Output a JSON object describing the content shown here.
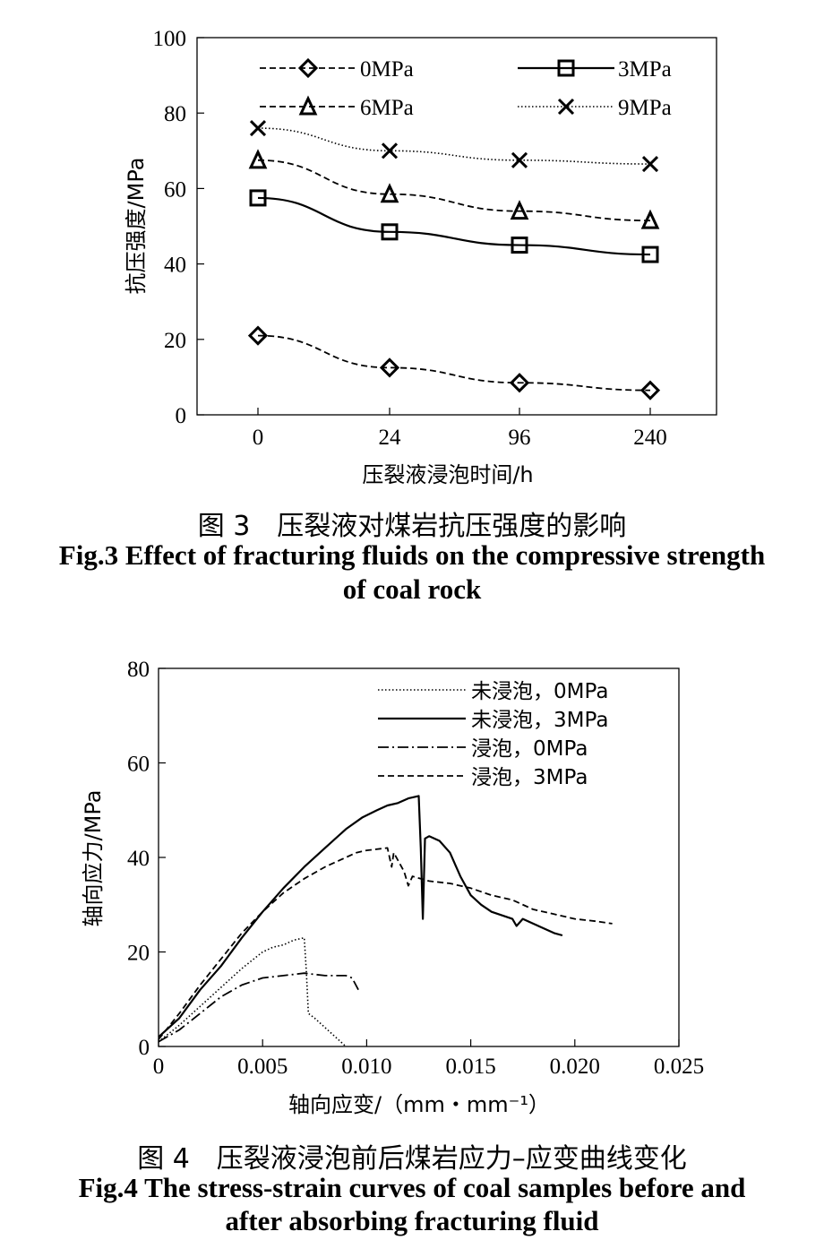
{
  "chart_data": [
    {
      "type": "line",
      "caption_cn": "图 3　压裂液对煤岩抗压强度的影响",
      "caption_en_line1": "Fig.3 Effect of fracturing fluids on the compressive strength",
      "caption_en_line2": "of coal rock",
      "xlabel": "压裂液浸泡时间/h",
      "ylabel": "抗压强度/MPa",
      "categories": [
        "0",
        "24",
        "96",
        "240"
      ],
      "ylim": [
        0,
        100
      ],
      "yticks": [
        "0",
        "20",
        "40",
        "60",
        "80",
        "100"
      ],
      "grid": false,
      "legend_position": "top",
      "series": [
        {
          "name": "0MPa",
          "marker": "diamond",
          "style": "dashed",
          "values": [
            21,
            12.5,
            8.5,
            6.5
          ]
        },
        {
          "name": "3MPa",
          "marker": "square",
          "style": "solid",
          "values": [
            57.5,
            48.5,
            45,
            42.5
          ]
        },
        {
          "name": "6MPa",
          "marker": "triangle",
          "style": "dashed",
          "values": [
            67.5,
            58.5,
            54,
            51.5
          ]
        },
        {
          "name": "9MPa",
          "marker": "x",
          "style": "dotted",
          "values": [
            76,
            70,
            67.5,
            66.5
          ]
        }
      ]
    },
    {
      "type": "line",
      "caption_cn": "图 4　压裂液浸泡前后煤岩应力–应变曲线变化",
      "caption_en_line1": "Fig.4 The stress-strain curves of coal samples before and",
      "caption_en_line2": "after absorbing fracturing fluid",
      "xlabel": "轴向应变/（mm・mm⁻¹）",
      "ylabel": "轴向应力/MPa",
      "xlim": [
        0,
        0.025
      ],
      "ylim": [
        0,
        80
      ],
      "xticks": [
        "0",
        "0.005",
        "0.010",
        "0.015",
        "0.020",
        "0.025"
      ],
      "yticks": [
        "0",
        "20",
        "40",
        "60",
        "80"
      ],
      "grid": false,
      "legend_position": "top-right",
      "series": [
        {
          "name": "未浸泡，0MPa",
          "style": "dotted",
          "x": [
            0,
            0.001,
            0.002,
            0.003,
            0.004,
            0.005,
            0.0055,
            0.006,
            0.0065,
            0.007,
            0.0071,
            0.0072,
            0.0075,
            0.008,
            0.0085,
            0.009
          ],
          "y": [
            1,
            4.5,
            8.5,
            12.5,
            16.5,
            20,
            21,
            21.5,
            22.5,
            23,
            16,
            7,
            6,
            4,
            2,
            0
          ]
        },
        {
          "name": "未浸泡，3MPa",
          "style": "solid",
          "x": [
            0,
            0.0005,
            0.001,
            0.002,
            0.003,
            0.004,
            0.005,
            0.006,
            0.007,
            0.008,
            0.009,
            0.0098,
            0.0105,
            0.011,
            0.0115,
            0.012,
            0.0125,
            0.0126,
            0.0127,
            0.0128,
            0.013,
            0.0135,
            0.014,
            0.0145,
            0.015,
            0.0155,
            0.016,
            0.017,
            0.0172,
            0.0175,
            0.018,
            0.0185,
            0.019,
            0.0194
          ],
          "y": [
            2,
            4,
            6,
            12,
            17,
            23,
            28.5,
            33.5,
            38,
            42,
            46,
            48.5,
            50,
            51,
            51.5,
            52.5,
            53,
            42,
            27,
            44,
            44.5,
            43.5,
            41,
            36,
            32,
            30,
            28.5,
            27,
            25.5,
            27,
            26,
            25,
            24,
            23.5
          ]
        },
        {
          "name": "浸泡，0MPa",
          "style": "dashdot",
          "x": [
            0,
            0.001,
            0.002,
            0.003,
            0.004,
            0.005,
            0.006,
            0.007,
            0.008,
            0.009,
            0.0093,
            0.0096
          ],
          "y": [
            1,
            3.5,
            7,
            10.5,
            13,
            14.5,
            15,
            15.5,
            15,
            15,
            14.5,
            12
          ]
        },
        {
          "name": "浸泡，3MPa",
          "style": "dashed",
          "x": [
            0,
            0.001,
            0.002,
            0.003,
            0.004,
            0.005,
            0.006,
            0.007,
            0.008,
            0.009,
            0.0095,
            0.01,
            0.011,
            0.0112,
            0.0113,
            0.0118,
            0.012,
            0.0122,
            0.013,
            0.014,
            0.015,
            0.016,
            0.017,
            0.018,
            0.019,
            0.02,
            0.021,
            0.0218
          ],
          "y": [
            1.5,
            7,
            13,
            18.5,
            24,
            28.5,
            32.5,
            35.5,
            38,
            40,
            41,
            41.5,
            42,
            38,
            41,
            37,
            34,
            36,
            35,
            34.5,
            33.5,
            32,
            31,
            29,
            28,
            27,
            26.5,
            26
          ]
        }
      ]
    }
  ]
}
